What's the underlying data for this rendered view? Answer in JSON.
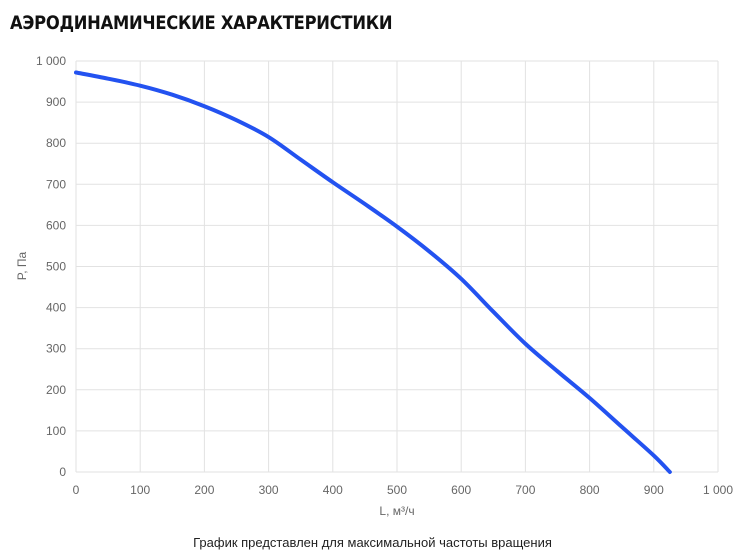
{
  "heading": "АЭРОДИНАМИЧЕСКИЕ ХАРАКТЕРИСТИКИ",
  "footnote": "График представлен для максимальной частоты вращения",
  "colors": {
    "line": "#2352f0",
    "grid": "#e2e2e2",
    "tick_text": "#666666"
  },
  "chart_data": {
    "type": "line",
    "xlabel": "L, м³/ч",
    "ylabel": "P, Па",
    "xlim": [
      0,
      1000
    ],
    "ylim": [
      0,
      1000
    ],
    "x_ticks": [
      0,
      100,
      200,
      300,
      400,
      500,
      600,
      700,
      800,
      900,
      1000
    ],
    "y_ticks": [
      0,
      100,
      200,
      300,
      400,
      500,
      600,
      700,
      800,
      900,
      1000
    ],
    "x_tick_labels": [
      "0",
      "100",
      "200",
      "300",
      "400",
      "500",
      "600",
      "700",
      "800",
      "900",
      "1 000"
    ],
    "y_tick_labels": [
      "0",
      "100",
      "200",
      "300",
      "400",
      "500",
      "600",
      "700",
      "800",
      "900",
      "1 000"
    ],
    "grid": true,
    "series": [
      {
        "x": [
          0,
          50,
          100,
          150,
          200,
          250,
          300,
          350,
          400,
          450,
          500,
          550,
          600,
          650,
          700,
          750,
          800,
          850,
          900,
          925
        ],
        "y": [
          972,
          957,
          940,
          918,
          890,
          856,
          815,
          760,
          705,
          652,
          597,
          537,
          470,
          390,
          312,
          245,
          180,
          110,
          40,
          0
        ]
      }
    ]
  }
}
